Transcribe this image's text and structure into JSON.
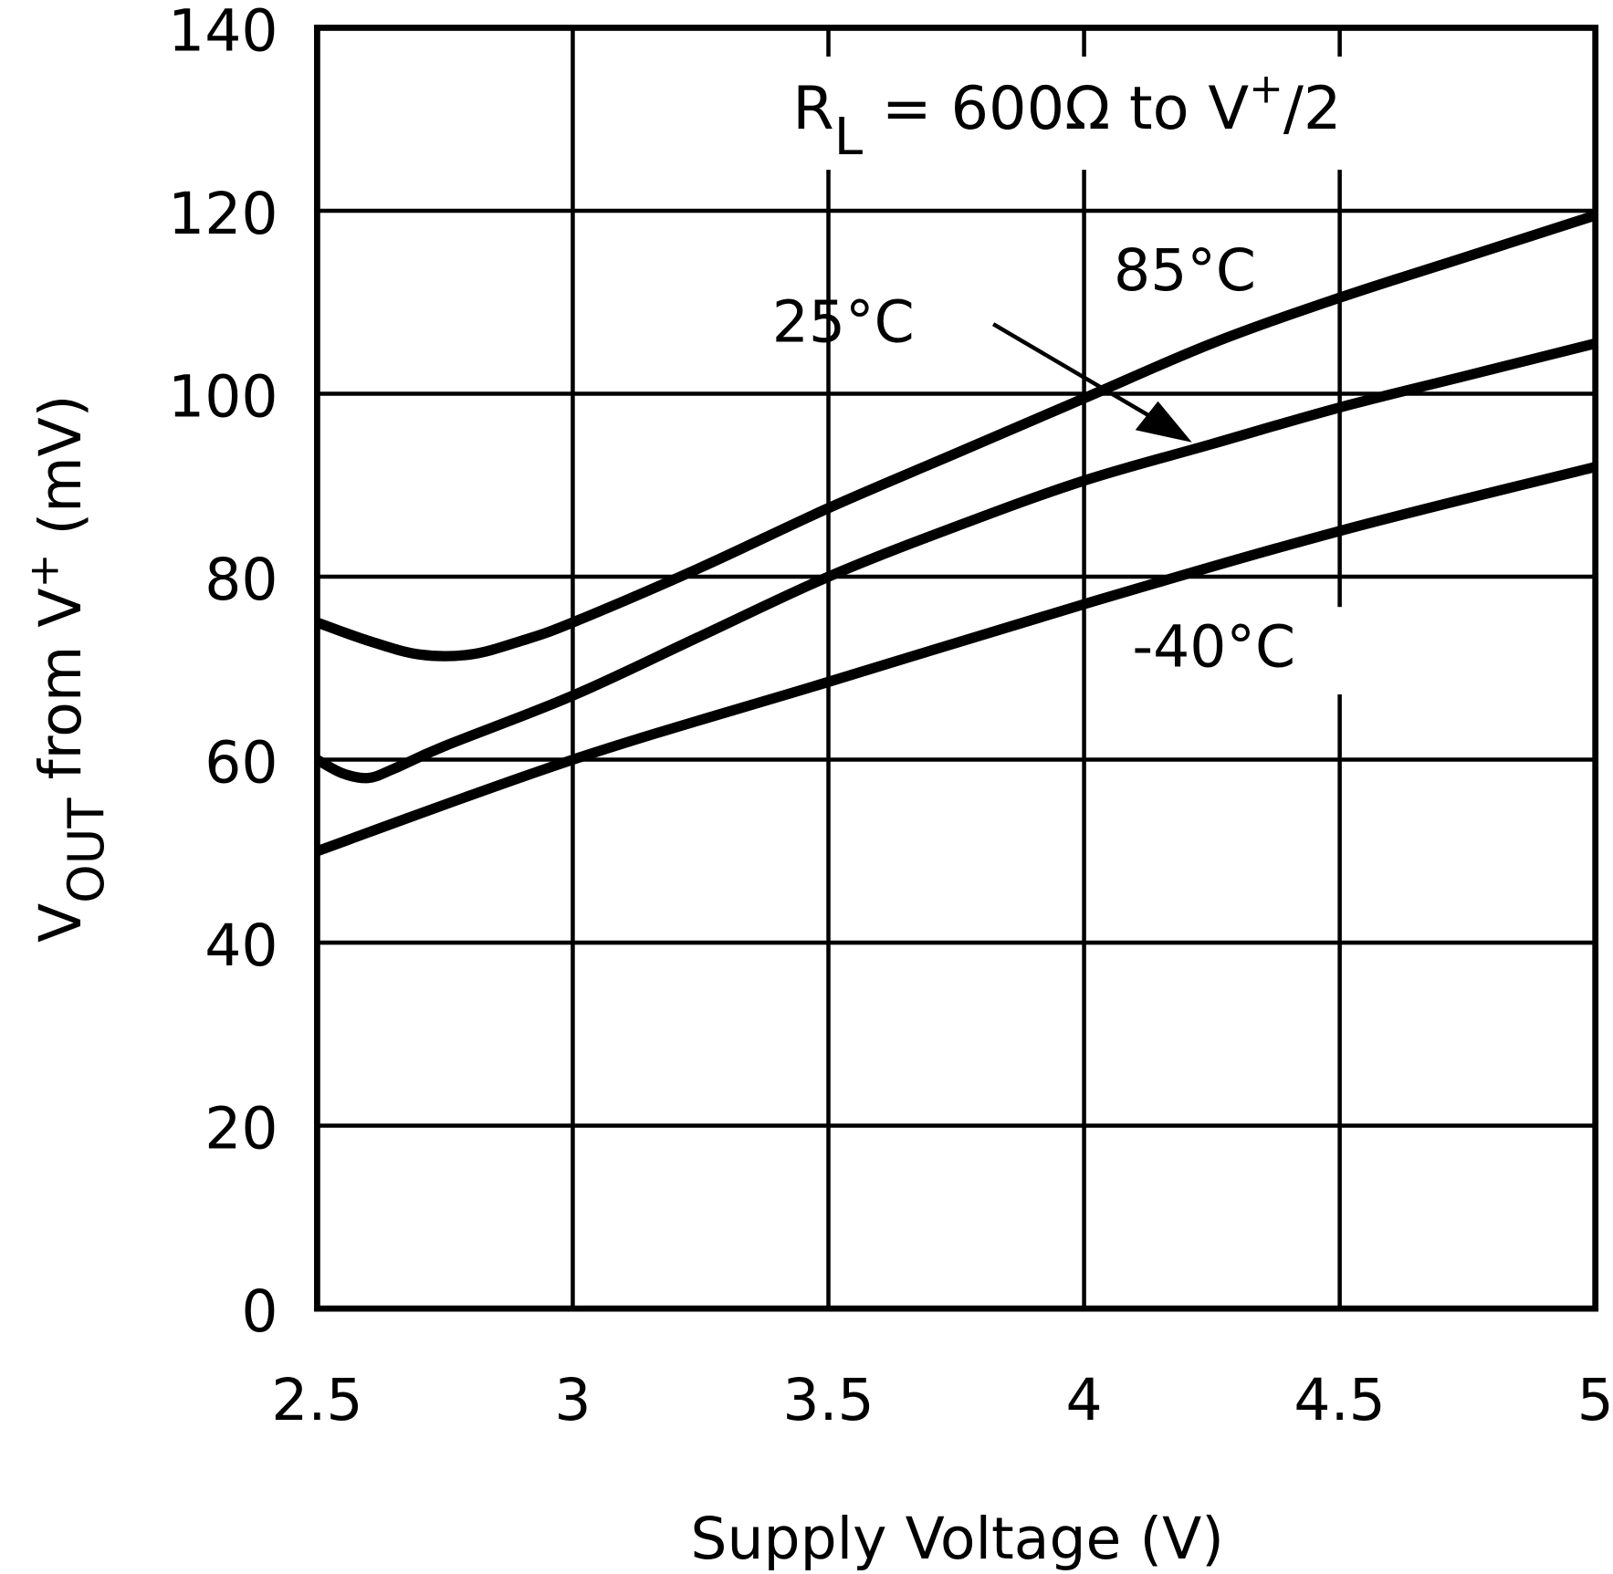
{
  "chart_data": {
    "type": "line",
    "title": "",
    "xlabel": "Supply Voltage (V)",
    "ylabel_parts": {
      "main": "V",
      "sub": "OUT",
      "rest": " from V",
      "sup": "+",
      "unit": " (mV)"
    },
    "xlim": [
      2.5,
      5
    ],
    "ylim": [
      0,
      140
    ],
    "xticks": [
      "2.5",
      "3",
      "3.5",
      "4",
      "4.5",
      "5"
    ],
    "yticks": [
      "0",
      "20",
      "40",
      "60",
      "80",
      "100",
      "120",
      "140"
    ],
    "grid": true,
    "annotation": {
      "r": "R",
      "sub": "L",
      "mid": " = 600Ω to V",
      "sup": "+",
      "end": "/2"
    },
    "series": [
      {
        "name": "85°C",
        "x": [
          2.5,
          2.6,
          2.7,
          2.8,
          2.9,
          3.0,
          3.25,
          3.5,
          3.75,
          4.0,
          4.25,
          4.5,
          4.75,
          5.0
        ],
        "y": [
          75,
          73,
          71.5,
          71.5,
          73,
          75,
          81,
          87.5,
          93.5,
          99.5,
          105.5,
          110.5,
          115,
          119.5
        ]
      },
      {
        "name": "25°C",
        "x": [
          2.5,
          2.55,
          2.6,
          2.65,
          2.75,
          3.0,
          3.25,
          3.5,
          3.75,
          4.0,
          4.25,
          4.5,
          4.75,
          5.0
        ],
        "y": [
          60,
          58.5,
          58,
          59,
          61.5,
          67,
          73.5,
          80,
          85.5,
          90.5,
          94.5,
          98.5,
          102,
          105.5
        ]
      },
      {
        "name": "-40°C",
        "x": [
          2.5,
          3.0,
          3.5,
          4.0,
          4.5,
          5.0
        ],
        "y": [
          50,
          60,
          68.5,
          77,
          85,
          92
        ]
      }
    ],
    "line_color": "#000000"
  }
}
